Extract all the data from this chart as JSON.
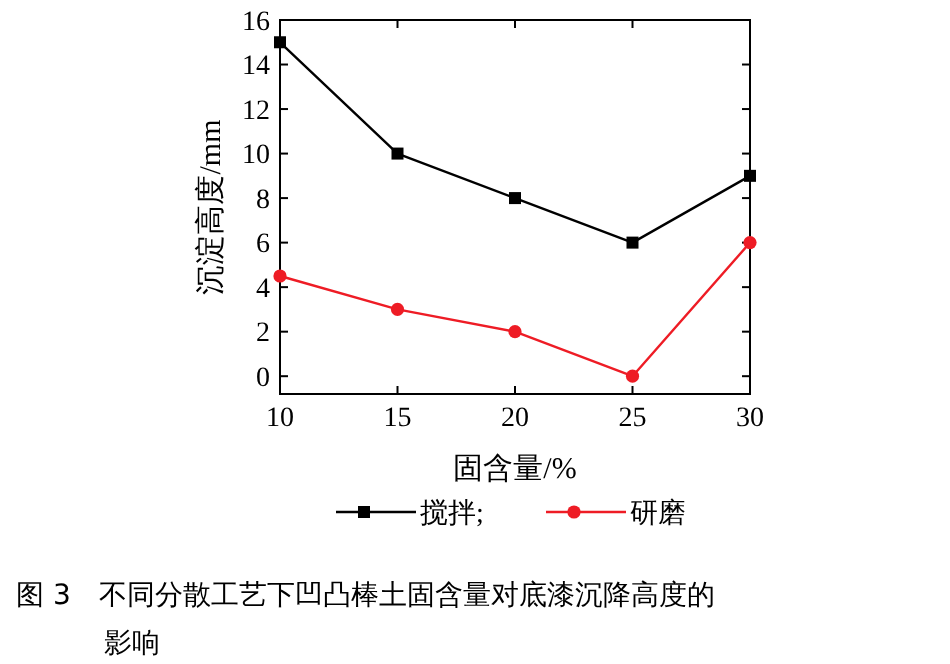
{
  "chart_data": {
    "type": "line",
    "xlabel": "固含量/%",
    "ylabel": "沉淀高度/mm",
    "x": [
      10,
      15,
      20,
      25,
      30
    ],
    "xlim": [
      10,
      30
    ],
    "xticks": [
      10,
      15,
      20,
      25,
      30
    ],
    "ylim": [
      -0.8,
      16
    ],
    "yticks": [
      0,
      2,
      4,
      6,
      8,
      10,
      12,
      14,
      16
    ],
    "series": [
      {
        "name": "搅拌;",
        "color": "#000000",
        "marker": "square",
        "values": [
          15,
          10,
          8,
          6,
          9
        ]
      },
      {
        "name": "研磨",
        "color": "#ee1c25",
        "marker": "circle",
        "values": [
          4.5,
          3,
          2,
          0,
          6
        ]
      }
    ],
    "legend": "bottom",
    "grid": false,
    "annotations": [
      "图 3　不同分散工艺下凹凸棒土固含量对底漆沉降高度的影响"
    ]
  }
}
